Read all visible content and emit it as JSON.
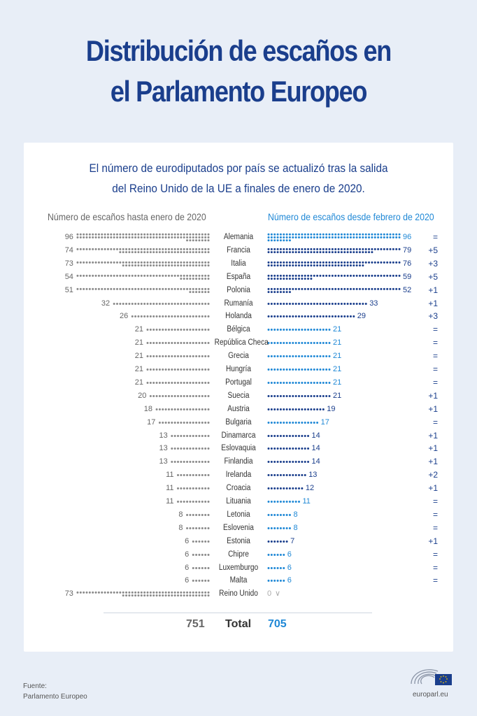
{
  "header": {
    "title_line1": "Distribución de escaños en",
    "title_line2": "el Parlamento Europeo",
    "subtitle_line1": "El número de eurodiputados por país se actualizó tras la salida",
    "subtitle_line2": "del Reino Unido de la UE a finales de enero de 2020."
  },
  "columns": {
    "left": "Número de escaños hasta enero de 2020",
    "right": "Número de escaños desde febrero de 2020"
  },
  "colors": {
    "title": "#1a3e8c",
    "grey_dots": "#8a8a8a",
    "dark_blue": "#1a3e8c",
    "light_blue": "#1f88d6"
  },
  "chart_data": {
    "type": "dot-comparison",
    "title": "Distribución de escaños en el Parlamento Europeo",
    "series": [
      {
        "name": "Número de escaños hasta enero de 2020"
      },
      {
        "name": "Número de escaños desde febrero de 2020"
      }
    ],
    "rows": [
      {
        "country": "Alemania",
        "before": 96,
        "after": 96,
        "diff": "="
      },
      {
        "country": "Francia",
        "before": 74,
        "after": 79,
        "diff": "+5"
      },
      {
        "country": "Italia",
        "before": 73,
        "after": 76,
        "diff": "+3"
      },
      {
        "country": "España",
        "before": 54,
        "after": 59,
        "diff": "+5"
      },
      {
        "country": "Polonia",
        "before": 51,
        "after": 52,
        "diff": "+1"
      },
      {
        "country": "Rumanía",
        "before": 32,
        "after": 33,
        "diff": "+1"
      },
      {
        "country": "Holanda",
        "before": 26,
        "after": 29,
        "diff": "+3"
      },
      {
        "country": "Bélgica",
        "before": 21,
        "after": 21,
        "diff": "="
      },
      {
        "country": "República Checa",
        "before": 21,
        "after": 21,
        "diff": "="
      },
      {
        "country": "Grecia",
        "before": 21,
        "after": 21,
        "diff": "="
      },
      {
        "country": "Hungría",
        "before": 21,
        "after": 21,
        "diff": "="
      },
      {
        "country": "Portugal",
        "before": 21,
        "after": 21,
        "diff": "="
      },
      {
        "country": "Suecia",
        "before": 20,
        "after": 21,
        "diff": "+1"
      },
      {
        "country": "Austria",
        "before": 18,
        "after": 19,
        "diff": "+1"
      },
      {
        "country": "Bulgaria",
        "before": 17,
        "after": 17,
        "diff": "="
      },
      {
        "country": "Dinamarca",
        "before": 13,
        "after": 14,
        "diff": "+1"
      },
      {
        "country": "Eslovaquia",
        "before": 13,
        "after": 14,
        "diff": "+1"
      },
      {
        "country": "Finlandia",
        "before": 13,
        "after": 14,
        "diff": "+1"
      },
      {
        "country": "Irelanda",
        "before": 11,
        "after": 13,
        "diff": "+2"
      },
      {
        "country": "Croacia",
        "before": 11,
        "after": 12,
        "diff": "+1"
      },
      {
        "country": "Lituania",
        "before": 11,
        "after": 11,
        "diff": "="
      },
      {
        "country": "Letonia",
        "before": 8,
        "after": 8,
        "diff": "="
      },
      {
        "country": "Eslovenia",
        "before": 8,
        "after": 8,
        "diff": "="
      },
      {
        "country": "Estonia",
        "before": 6,
        "after": 7,
        "diff": "+1"
      },
      {
        "country": "Chipre",
        "before": 6,
        "after": 6,
        "diff": "="
      },
      {
        "country": "Luxemburgo",
        "before": 6,
        "after": 6,
        "diff": "="
      },
      {
        "country": "Malta",
        "before": 6,
        "after": 6,
        "diff": "="
      },
      {
        "country": "Reino Unido",
        "before": 73,
        "after": 0,
        "diff": ""
      }
    ],
    "totals": {
      "before": 751,
      "label": "Total",
      "after": 705
    }
  },
  "footer": {
    "source_label": "Fuente:",
    "source_name": "Parlamento Europeo",
    "site": "europarl.eu"
  }
}
